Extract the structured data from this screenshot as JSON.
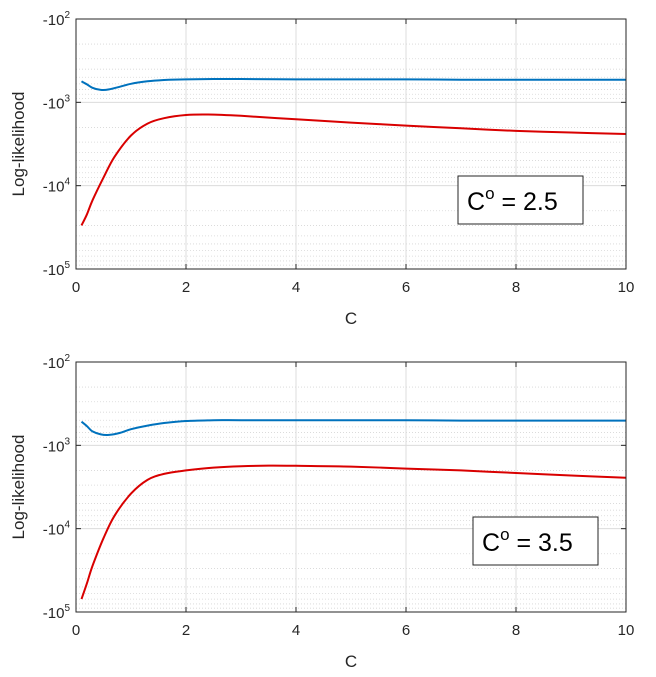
{
  "chart_data": [
    {
      "type": "line",
      "xlabel": "C",
      "ylabel": "Log-likelihood",
      "xlim": [
        0,
        10
      ],
      "ylim": [
        -100000,
        -100
      ],
      "yscale": "log (negative)",
      "grid": true,
      "xticks": [
        "0",
        "2",
        "4",
        "6",
        "8",
        "10"
      ],
      "yticks": [
        {
          "base": "-10",
          "exp": "2"
        },
        {
          "base": "-10",
          "exp": "3"
        },
        {
          "base": "-10",
          "exp": "4"
        },
        {
          "base": "-10",
          "exp": "5"
        }
      ],
      "annotation": {
        "base": "C",
        "sup": "o",
        "rest": " = 2.5"
      },
      "series": [
        {
          "color": "#0072BD",
          "x": [
            0.1,
            0.2,
            0.3,
            0.45,
            0.6,
            0.8,
            1.0,
            1.3,
            1.6,
            2.0,
            2.5,
            3,
            4,
            5,
            6,
            7,
            8,
            9,
            10
          ],
          "y": [
            -560,
            -610,
            -670,
            -710,
            -700,
            -650,
            -600,
            -560,
            -540,
            -530,
            -525,
            -525,
            -530,
            -530,
            -530,
            -535,
            -535,
            -535,
            -535
          ]
        },
        {
          "color": "#D90000",
          "x": [
            0.1,
            0.2,
            0.3,
            0.5,
            0.7,
            1.0,
            1.3,
            1.6,
            2.0,
            2.4,
            3.0,
            4.0,
            5.0,
            6.0,
            7.0,
            8.0,
            9.0,
            10.0
          ],
          "y": [
            -30000,
            -22000,
            -15000,
            -8000,
            -4500,
            -2500,
            -1800,
            -1550,
            -1420,
            -1400,
            -1450,
            -1600,
            -1750,
            -1900,
            -2050,
            -2200,
            -2300,
            -2400
          ]
        }
      ]
    },
    {
      "type": "line",
      "xlabel": "C",
      "ylabel": "Log-likelihood",
      "xlim": [
        0,
        10
      ],
      "ylim": [
        -100000,
        -100
      ],
      "yscale": "log (negative)",
      "grid": true,
      "xticks": [
        "0",
        "2",
        "4",
        "6",
        "8",
        "10"
      ],
      "yticks": [
        {
          "base": "-10",
          "exp": "2"
        },
        {
          "base": "-10",
          "exp": "3"
        },
        {
          "base": "-10",
          "exp": "4"
        },
        {
          "base": "-10",
          "exp": "5"
        }
      ],
      "annotation": {
        "base": "C",
        "sup": "o",
        "rest": " = 3.5"
      },
      "series": [
        {
          "color": "#0072BD",
          "x": [
            0.1,
            0.2,
            0.3,
            0.45,
            0.6,
            0.8,
            1.0,
            1.3,
            1.6,
            2.0,
            2.5,
            3,
            4,
            5,
            6,
            7,
            8,
            9,
            10
          ],
          "y": [
            -520,
            -590,
            -680,
            -740,
            -750,
            -710,
            -640,
            -580,
            -540,
            -510,
            -500,
            -500,
            -500,
            -500,
            -500,
            -505,
            -505,
            -505,
            -505
          ]
        },
        {
          "color": "#D90000",
          "x": [
            0.1,
            0.2,
            0.3,
            0.5,
            0.7,
            1.0,
            1.3,
            1.6,
            2.0,
            2.5,
            3.0,
            3.5,
            4.0,
            5.0,
            6.0,
            7.0,
            8.0,
            9.0,
            10.0
          ],
          "y": [
            -70000,
            -45000,
            -28000,
            -13000,
            -7000,
            -3800,
            -2600,
            -2200,
            -2000,
            -1850,
            -1780,
            -1750,
            -1760,
            -1800,
            -1900,
            -2000,
            -2150,
            -2300,
            -2450
          ]
        }
      ]
    }
  ]
}
